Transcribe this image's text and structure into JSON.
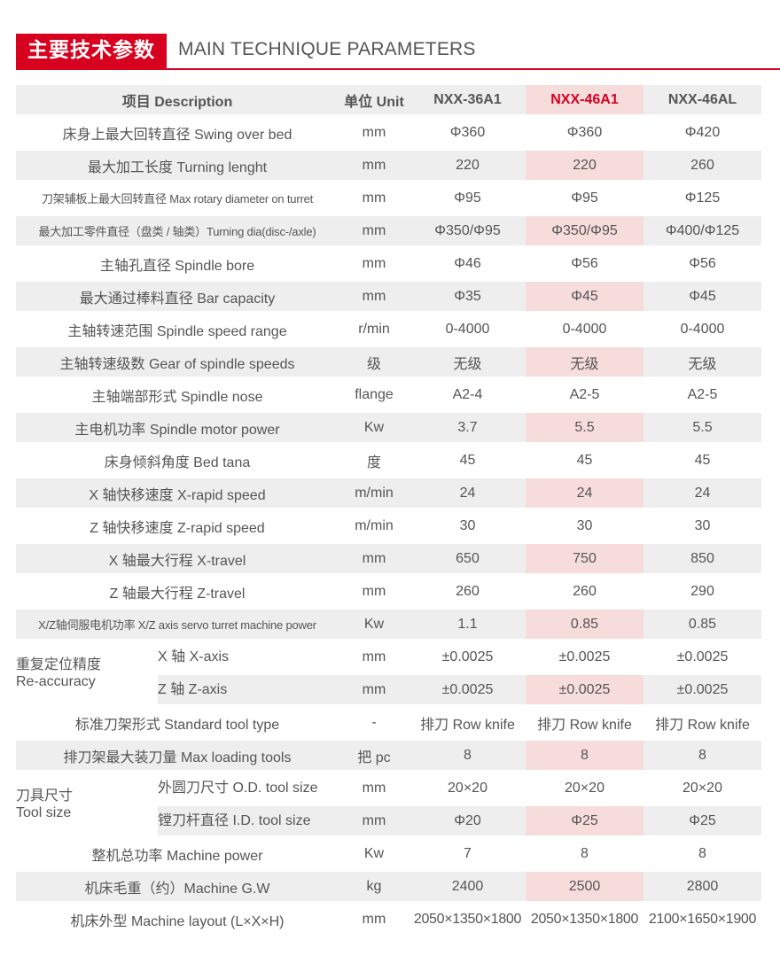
{
  "header": {
    "title_cn": "主要技术参数",
    "title_en": "MAIN TECHNIQUE PARAMETERS"
  },
  "table": {
    "col_description": "项目 Description",
    "col_unit": "单位 Unit",
    "models": [
      "NXX-36A1",
      "NXX-46A1",
      "NXX-46AL"
    ],
    "rows": [
      {
        "name": "床身上最大回转直径 Swing over bed",
        "unit": "mm",
        "values": [
          "Φ360",
          "Φ360",
          "Φ420"
        ]
      },
      {
        "name": "最大加工长度 Turning lenght",
        "unit": "mm",
        "values": [
          "220",
          "220",
          "260"
        ]
      },
      {
        "name": "刀架辅板上最大回转直径 Max rotary diameter on turret",
        "unit": "mm",
        "values": [
          "Φ95",
          "Φ95",
          "Φ125"
        ]
      },
      {
        "name": "最大加工零件直径（盘类 / 轴类）Turning dia(disc-/axle)",
        "unit": "mm",
        "values": [
          "Φ350/Φ95",
          "Φ350/Φ95",
          "Φ400/Φ125"
        ]
      },
      {
        "name": "主轴孔直径 Spindle bore",
        "unit": "mm",
        "values": [
          "Φ46",
          "Φ56",
          "Φ56"
        ]
      },
      {
        "name": "最大通过棒料直径 Bar capacity",
        "unit": "mm",
        "values": [
          "Φ35",
          "Φ45",
          "Φ45"
        ]
      },
      {
        "name": "主轴转速范围 Spindle speed range",
        "unit": "r/min",
        "values": [
          "0-4000",
          "0-4000",
          "0-4000"
        ]
      },
      {
        "name": "主轴转速级数 Gear of spindle speeds",
        "unit": "级",
        "values": [
          "无级",
          "无级",
          "无级"
        ]
      },
      {
        "name": "主轴端部形式 Spindle nose",
        "unit": "flange",
        "values": [
          "A2-4",
          "A2-5",
          "A2-5"
        ]
      },
      {
        "name": "主电机功率 Spindle motor power",
        "unit": "Kw",
        "values": [
          "3.7",
          "5.5",
          "5.5"
        ]
      },
      {
        "name": "床身倾斜角度 Bed tana",
        "unit": "度",
        "values": [
          "45",
          "45",
          "45"
        ]
      },
      {
        "name": "X 轴快移速度 X-rapid speed",
        "unit": "m/min",
        "values": [
          "24",
          "24",
          "24"
        ]
      },
      {
        "name": "Z 轴快移速度 Z-rapid speed",
        "unit": "m/min",
        "values": [
          "30",
          "30",
          "30"
        ]
      },
      {
        "name": "X 轴最大行程 X-travel",
        "unit": "mm",
        "values": [
          "650",
          "750",
          "850"
        ]
      },
      {
        "name": "Z 轴最大行程 Z-travel",
        "unit": "mm",
        "values": [
          "260",
          "260",
          "290"
        ]
      },
      {
        "name": "X/Z轴伺服电机功率 X/Z axis servo turret machine power",
        "unit": "Kw",
        "values": [
          "1.1",
          "0.85",
          "0.85"
        ]
      }
    ],
    "reaccuracy": {
      "group_cn": "重复定位精度",
      "group_en": "Re-accuracy",
      "sub": [
        {
          "name": "X 轴 X-axis",
          "unit": "mm",
          "values": [
            "±0.0025",
            "±0.0025",
            "±0.0025"
          ]
        },
        {
          "name": "Z 轴 Z-axis",
          "unit": "mm",
          "values": [
            "±0.0025",
            "±0.0025",
            "±0.0025"
          ]
        }
      ]
    },
    "tooltype": {
      "name": "标准刀架形式 Standard tool type",
      "unit": "-",
      "values": [
        "排刀 Row knife",
        "排刀 Row knife",
        "排刀 Row knife"
      ]
    },
    "loading": {
      "name": "排刀架最大装刀量 Max loading tools",
      "unit": "把 pc",
      "values": [
        "8",
        "8",
        "8"
      ]
    },
    "toolsize": {
      "group_cn": "刀具尺寸",
      "group_en": "Tool size",
      "sub": [
        {
          "name": "外圆刀尺寸 O.D. tool size",
          "unit": "mm",
          "values": [
            "20×20",
            "20×20",
            "20×20"
          ]
        },
        {
          "name": "镗刀杆直径 I.D. tool size",
          "unit": "mm",
          "values": [
            "Φ20",
            "Φ25",
            "Φ25"
          ]
        }
      ]
    },
    "tail": [
      {
        "name": "整机总功率 Machine power",
        "unit": "Kw",
        "values": [
          "7",
          "8",
          "8"
        ]
      },
      {
        "name": "机床毛重（约）Machine G.W",
        "unit": "kg",
        "values": [
          "2400",
          "2500",
          "2800"
        ]
      },
      {
        "name": "机床外型 Machine layout (L×X×H)",
        "unit": "mm",
        "values": [
          "2050×1350×1800",
          "2050×1350×1800",
          "2100×1650×1900"
        ]
      }
    ]
  }
}
